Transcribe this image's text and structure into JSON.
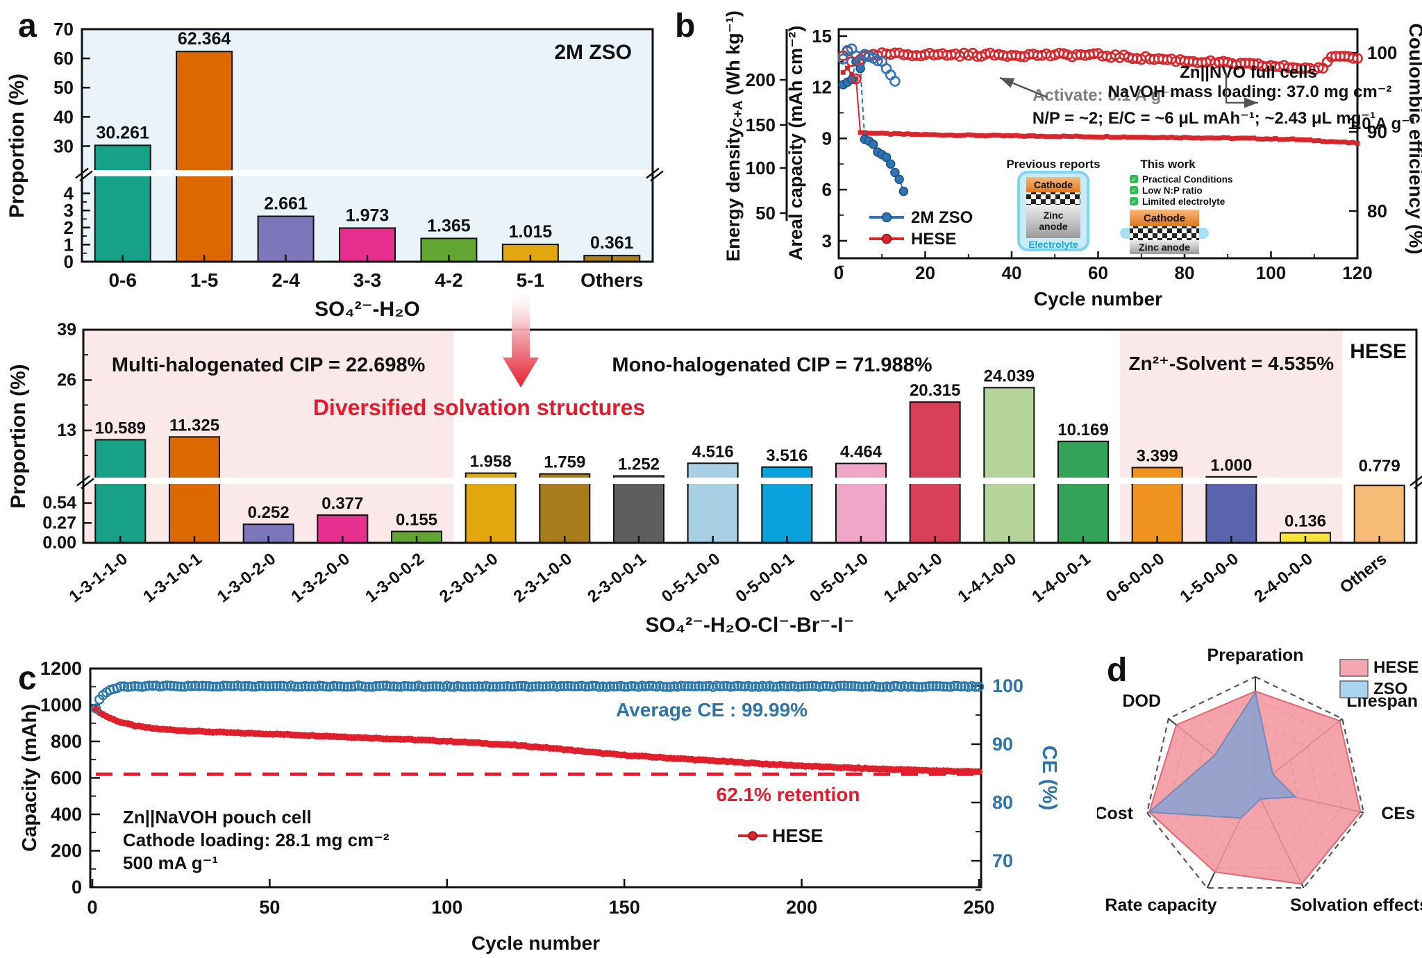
{
  "panel_letters": {
    "a": "a",
    "b": "b",
    "c": "c",
    "d": "d"
  },
  "chart_data": [
    {
      "id": "a",
      "type": "bar",
      "title_tag": "2M ZSO",
      "xlabel": "SO₄²⁻-H₂O",
      "ylabel": "Proportion (%)",
      "categories": [
        "0-6",
        "1-5",
        "2-4",
        "3-3",
        "4-2",
        "5-1",
        "Others"
      ],
      "values": [
        30.261,
        62.364,
        2.661,
        1.973,
        1.365,
        1.015,
        0.361
      ],
      "value_labels": [
        "30.261",
        "62.364",
        "2.661",
        "1.973",
        "1.365",
        "1.015",
        "0.361"
      ],
      "bar_colors": [
        "#17a186",
        "#dc6802",
        "#7d76ba",
        "#e62f8e",
        "#63a532",
        "#e2a70f",
        "#ab7e19"
      ],
      "broken_axis": {
        "lower_ticks": [
          0,
          1,
          2,
          3,
          4
        ],
        "upper_ticks": [
          30,
          40,
          50,
          60,
          70
        ],
        "lower_max": 5,
        "upper_min": 21.8,
        "upper_max": 70
      },
      "plot_bg": "#e9f3f9"
    },
    {
      "id": "mid",
      "type": "bar",
      "title_tag": "HESE",
      "xlabel": "SO₄²⁻-H₂O-Cl⁻-Br⁻-I⁻",
      "ylabel": "Proportion (%)",
      "categories": [
        "1-3-1-1-0",
        "1-3-1-0-1",
        "1-3-0-2-0",
        "1-3-2-0-0",
        "1-3-0-0-2",
        "2-3-0-1-0",
        "2-3-1-0-0",
        "2-3-0-0-1",
        "0-5-1-0-0",
        "0-5-0-0-1",
        "0-5-0-1-0",
        "1-4-0-1-0",
        "1-4-1-0-0",
        "1-4-0-0-1",
        "0-6-0-0-0",
        "1-5-0-0-0",
        "2-4-0-0-0",
        "Others"
      ],
      "values": [
        10.589,
        11.325,
        0.252,
        0.377,
        0.155,
        1.958,
        1.759,
        1.252,
        4.516,
        3.516,
        4.464,
        20.315,
        24.039,
        10.169,
        3.399,
        1.0,
        0.136,
        0.779
      ],
      "value_labels": [
        "10.589",
        "11.325",
        "0.252",
        "0.377",
        "0.155",
        "1.958",
        "1.759",
        "1.252",
        "4.516",
        "3.516",
        "4.464",
        "20.315",
        "24.039",
        "10.169",
        "3.399",
        "1.000",
        "0.136",
        "0.779"
      ],
      "bar_colors": [
        "#17a186",
        "#dc6802",
        "#7d76ba",
        "#e62f8e",
        "#63a532",
        "#e2a70f",
        "#a87c1b",
        "#5e5e5e",
        "#a9cfe5",
        "#09a2dc",
        "#f0a6c6",
        "#d8405a",
        "#b5d49b",
        "#33a457",
        "#f0921e",
        "#5a63ae",
        "#f6e339",
        "#f6bc77"
      ],
      "broken_axis": {
        "lower_ticks": [
          "0.00",
          "0.27",
          "0.54"
        ],
        "upper_ticks": [
          13,
          26,
          39
        ],
        "lower_max": 0.8,
        "upper_min": 0.8,
        "upper_max": 39
      },
      "regions": [
        {
          "label": "Multi-halogenated CIP = 22.698%",
          "start": 0,
          "end": 5,
          "shaded": true
        },
        {
          "label": "Mono-halogenated CIP = 71.988%",
          "start": 5,
          "end": 14,
          "shaded": false
        },
        {
          "label": "Zn²⁺-Solvent = 4.535%",
          "start": 14,
          "end": 17,
          "shaded": true
        }
      ],
      "region_color": "#fbe9e9",
      "highlight_text": "Diversified solvation structures",
      "highlight_color": "#e8192c"
    },
    {
      "id": "b",
      "type": "scatter",
      "xlabel": "Cycle number",
      "x_ticks": [
        0,
        20,
        40,
        60,
        80,
        100,
        120
      ],
      "xlim": [
        0,
        120
      ],
      "left_axis_energy": {
        "label_main": "Energy density",
        "label_sub": "C+A",
        "label_unit": " (Wh kg⁻¹)",
        "ticks": [
          200,
          150,
          100,
          50
        ]
      },
      "left_axis_capacity": {
        "label": "Areal capacity (mAh cm⁻²)",
        "ticks": [
          15,
          12,
          9,
          6,
          3
        ],
        "lim": [
          0,
          15
        ]
      },
      "right_axis": {
        "label": "Coulombic efficiency (%)",
        "ticks": [
          100,
          90,
          80
        ]
      },
      "legend": [
        {
          "label": "2M ZSO",
          "color": "#2e74b5"
        },
        {
          "label": "HESE",
          "color": "#d7262c"
        }
      ],
      "annotations": {
        "activate": "Activate: 0.1 A g⁻¹",
        "cell": "Zn||NVO full cells",
        "loading": "NaVOH mass loading: 37.0 mg cm⁻²",
        "ratio": "N/P = ~2;  E/C = ~6 μL mAh⁻¹; ~2.43 μL mg⁻¹",
        "rate": "1.0 A g⁻¹"
      },
      "series": {
        "hese_capacity_keypoints": [
          [
            1,
            12.85
          ],
          [
            2,
            13.15
          ],
          [
            3,
            12.75
          ],
          [
            4,
            12.5
          ],
          [
            5,
            9.35
          ],
          [
            10,
            9.28
          ],
          [
            20,
            9.22
          ],
          [
            40,
            9.15
          ],
          [
            60,
            9.1
          ],
          [
            80,
            9.05
          ],
          [
            95,
            9.0
          ],
          [
            105,
            8.95
          ],
          [
            112,
            8.85
          ],
          [
            120,
            8.72
          ]
        ],
        "zso_capacity_points": [
          [
            1,
            12.15
          ],
          [
            2,
            12.3
          ],
          [
            3,
            12.45
          ],
          [
            4,
            13.5
          ],
          [
            5,
            13.1
          ],
          [
            6,
            8.95
          ],
          [
            7,
            8.85
          ],
          [
            8,
            8.65
          ],
          [
            9,
            8.2
          ],
          [
            10,
            8.05
          ],
          [
            11,
            7.9
          ],
          [
            12,
            7.5
          ],
          [
            13,
            7.0
          ],
          [
            14,
            6.6
          ],
          [
            15,
            5.9
          ]
        ],
        "hese_ce_keypoints": [
          [
            1,
            99.6
          ],
          [
            2,
            100.2
          ],
          [
            3,
            99.0
          ],
          [
            4,
            96.8
          ],
          [
            5,
            99.3
          ],
          [
            10,
            99.8
          ],
          [
            60,
            99.7
          ],
          [
            112,
            97.9
          ],
          [
            114,
            99.6
          ],
          [
            120,
            99.5
          ]
        ],
        "hese_ce_noise": 0.45,
        "zso_ce_points": [
          [
            1,
            99.2
          ],
          [
            2,
            100.3
          ],
          [
            3,
            100.5
          ],
          [
            4,
            99.6
          ],
          [
            5,
            98.9
          ],
          [
            6,
            99.8
          ],
          [
            7,
            99.5
          ],
          [
            8,
            99.3
          ],
          [
            9,
            99.0
          ],
          [
            10,
            98.9
          ],
          [
            11,
            98.0
          ],
          [
            12,
            97.2
          ],
          [
            13,
            96.4
          ]
        ]
      },
      "inset": {
        "previous": {
          "title": "Previous reports",
          "cathode": "Cathode",
          "anode_line1": "Zinc",
          "anode_line2": "anode",
          "electrolyte": "Electrolyte"
        },
        "thiswork": {
          "title": "This work",
          "checks": [
            "Practical Conditions",
            "Low N:P ratio",
            "Limited electrolyte"
          ],
          "cathode": "Cathode",
          "anode": "Zinc anode"
        }
      }
    },
    {
      "id": "c",
      "type": "scatter",
      "xlabel": "Cycle number",
      "ylabel": "Capacity (mAh)",
      "x_ticks": [
        0,
        50,
        100,
        150,
        200,
        250
      ],
      "xlim": [
        0,
        250
      ],
      "y_ticks": [
        0,
        200,
        400,
        600,
        800,
        1000,
        1200
      ],
      "ylim": [
        0,
        1200
      ],
      "right_axis": {
        "label": "CE (%)",
        "ticks": [
          100,
          90,
          80,
          70
        ],
        "color": "#2e74a8"
      },
      "retention_level": 620,
      "annotations": {
        "avg_ce": "Average CE : 99.99%",
        "retention": "62.1% retention",
        "info_lines": [
          "Zn||NaVOH pouch cell",
          "Cathode loading: 28.1 mg cm⁻²",
          "500 mA g⁻¹"
        ]
      },
      "legend": {
        "label": "HESE",
        "color": "#d7262c"
      },
      "series": {
        "capacity_keypoints": [
          [
            1,
            975
          ],
          [
            3,
            948
          ],
          [
            5,
            928
          ],
          [
            8,
            905
          ],
          [
            12,
            886
          ],
          [
            16,
            874
          ],
          [
            20,
            866
          ],
          [
            30,
            855
          ],
          [
            40,
            847
          ],
          [
            50,
            841
          ],
          [
            60,
            834
          ],
          [
            70,
            826
          ],
          [
            80,
            818
          ],
          [
            90,
            810
          ],
          [
            100,
            801
          ],
          [
            110,
            790
          ],
          [
            120,
            778
          ],
          [
            130,
            762
          ],
          [
            140,
            742
          ],
          [
            150,
            724
          ],
          [
            160,
            712
          ],
          [
            170,
            700
          ],
          [
            180,
            688
          ],
          [
            190,
            676
          ],
          [
            200,
            666
          ],
          [
            210,
            657
          ],
          [
            220,
            650
          ],
          [
            230,
            644
          ],
          [
            240,
            638
          ],
          [
            250,
            633
          ]
        ],
        "capacity_noise": 5,
        "ce_keypoints": [
          [
            1,
            96.2
          ],
          [
            2,
            97.6
          ],
          [
            3,
            98.5
          ],
          [
            5,
            99.3
          ],
          [
            8,
            99.8
          ],
          [
            15,
            99.95
          ],
          [
            250,
            99.9
          ]
        ],
        "ce_noise": 0.25,
        "capacity_color": "#e01f2d",
        "ce_color": "#2e79ab"
      }
    },
    {
      "id": "d",
      "type": "radar",
      "axes": [
        "Preparation",
        "Lifespan",
        "CEs",
        "Solvation effects",
        "Rate capacity",
        "Cost",
        "DOD"
      ],
      "series": [
        {
          "name": "HESE",
          "values": [
            0.87,
            0.97,
            0.97,
            0.96,
            0.84,
            0.98,
            0.91
          ],
          "fill": "rgba(243,150,158,0.88)",
          "stroke": "#df6570",
          "swatch": "#f4a7b0"
        },
        {
          "name": "ZSO",
          "values": [
            0.86,
            0.2,
            0.37,
            0.11,
            0.3,
            0.98,
            0.47
          ],
          "fill": "rgba(136,162,208,0.85)",
          "stroke": "#7289ba",
          "swatch": "#a9d3ee"
        }
      ],
      "grid_levels": 5
    }
  ]
}
